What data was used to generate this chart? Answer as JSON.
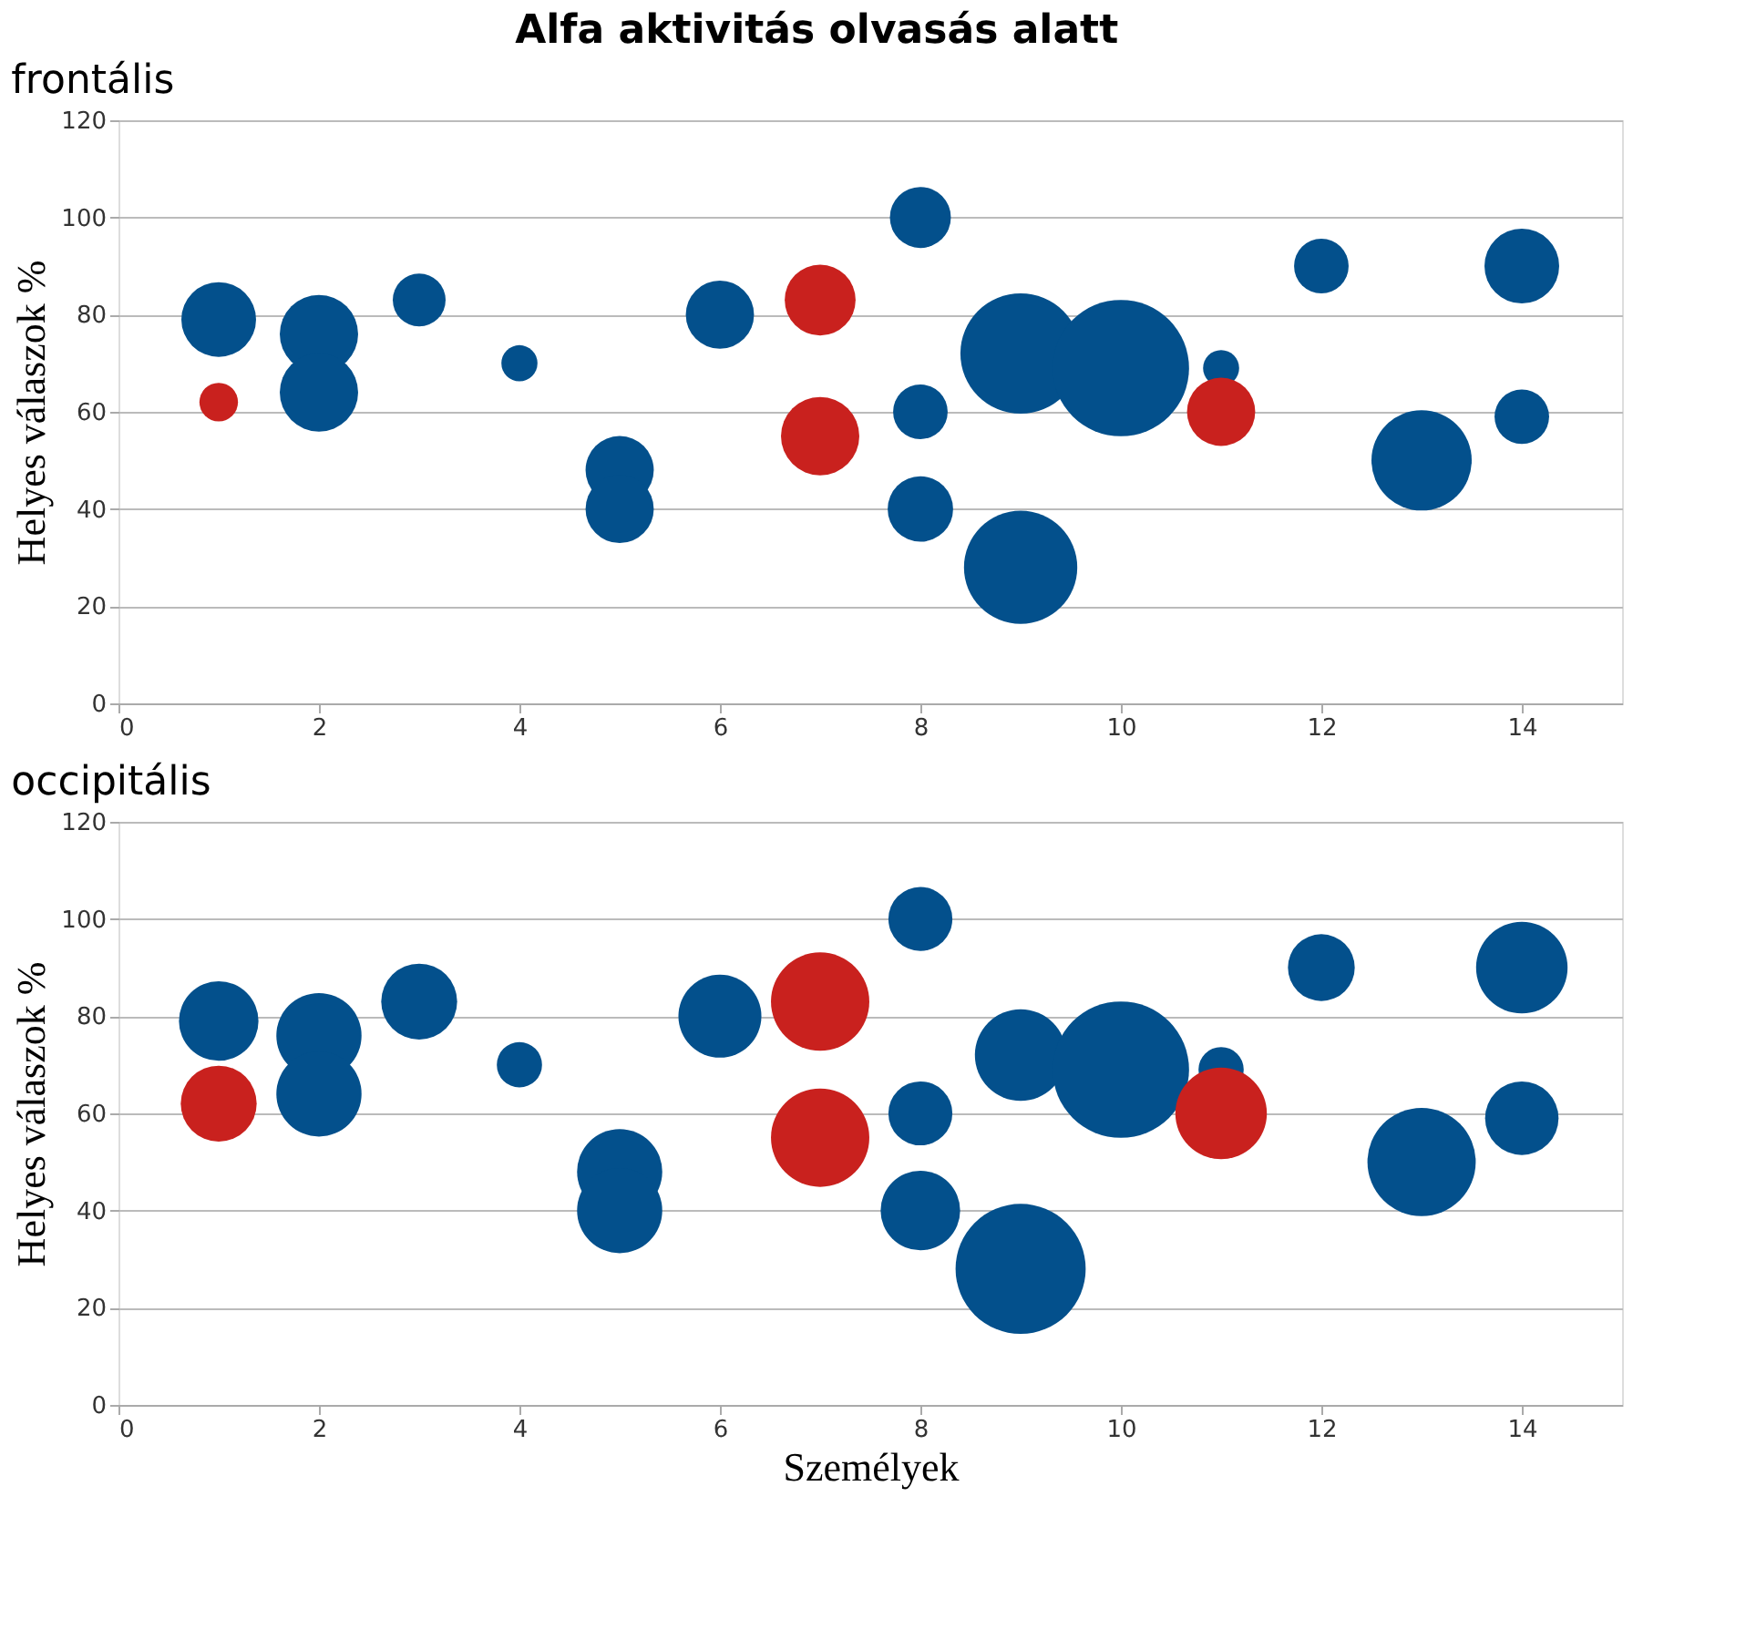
{
  "chart_data": [
    {
      "type": "bubble",
      "title": "Alfa aktivitás olvasás alatt",
      "subtitle": "frontális",
      "ylabel": "Helyes válaszok %",
      "xlim": [
        0,
        15
      ],
      "xticks": [
        0,
        2,
        4,
        6,
        8,
        10,
        12,
        14
      ],
      "ylim": [
        0,
        120
      ],
      "yticks": [
        0,
        20,
        40,
        60,
        80,
        100,
        120
      ],
      "grid": "y",
      "series": [
        {
          "color": "#03508c",
          "x": [
            1,
            2,
            2,
            3,
            4,
            5,
            5,
            6,
            8,
            8,
            8,
            9,
            9,
            10,
            11,
            12,
            13,
            14,
            14
          ],
          "values": [
            79,
            76,
            64,
            83,
            70,
            48,
            40,
            80,
            100,
            60,
            40,
            72,
            28,
            69,
            69,
            90,
            50,
            90,
            59
          ],
          "sizes": [
            0.3,
            0.33,
            0.33,
            0.15,
            0.07,
            0.25,
            0.25,
            0.25,
            0.2,
            0.16,
            0.23,
            0.78,
            0.69,
            1,
            0.07,
            0.16,
            0.54,
            0.3,
            0.16
          ]
        },
        {
          "color": "#c9211e",
          "x": [
            1,
            7,
            7,
            11
          ],
          "values": [
            62,
            83,
            55,
            60
          ],
          "sizes": [
            0.08,
            0.27,
            0.33,
            0.25
          ]
        }
      ]
    },
    {
      "type": "bubble",
      "title": "occipitális",
      "xlabel": "Személyek",
      "ylabel": "Helyes válaszok %",
      "xlim": [
        0,
        15
      ],
      "xticks": [
        0,
        2,
        4,
        6,
        8,
        10,
        12,
        14
      ],
      "ylim": [
        0,
        120
      ],
      "yticks": [
        0,
        20,
        40,
        60,
        80,
        100,
        120
      ],
      "grid": "y",
      "series": [
        {
          "color": "#03508c",
          "x": [
            1,
            2,
            2,
            3,
            4,
            5,
            5,
            6,
            8,
            8,
            8,
            9,
            9,
            10,
            11,
            12,
            13,
            14,
            14
          ],
          "values": [
            79,
            76,
            64,
            83,
            70,
            48,
            40,
            80,
            100,
            60,
            40,
            72,
            28,
            69,
            69,
            90,
            50,
            90,
            59
          ],
          "sizes": [
            0.34,
            0.39,
            0.39,
            0.31,
            0.11,
            0.39,
            0.39,
            0.37,
            0.22,
            0.22,
            0.34,
            0.45,
            0.91,
            1,
            0.11,
            0.24,
            0.63,
            0.45,
            0.29
          ]
        },
        {
          "color": "#c9211e",
          "x": [
            1,
            7,
            7,
            11
          ],
          "values": [
            62,
            83,
            55,
            60
          ],
          "sizes": [
            0.31,
            0.52,
            0.52,
            0.45
          ]
        }
      ]
    }
  ]
}
